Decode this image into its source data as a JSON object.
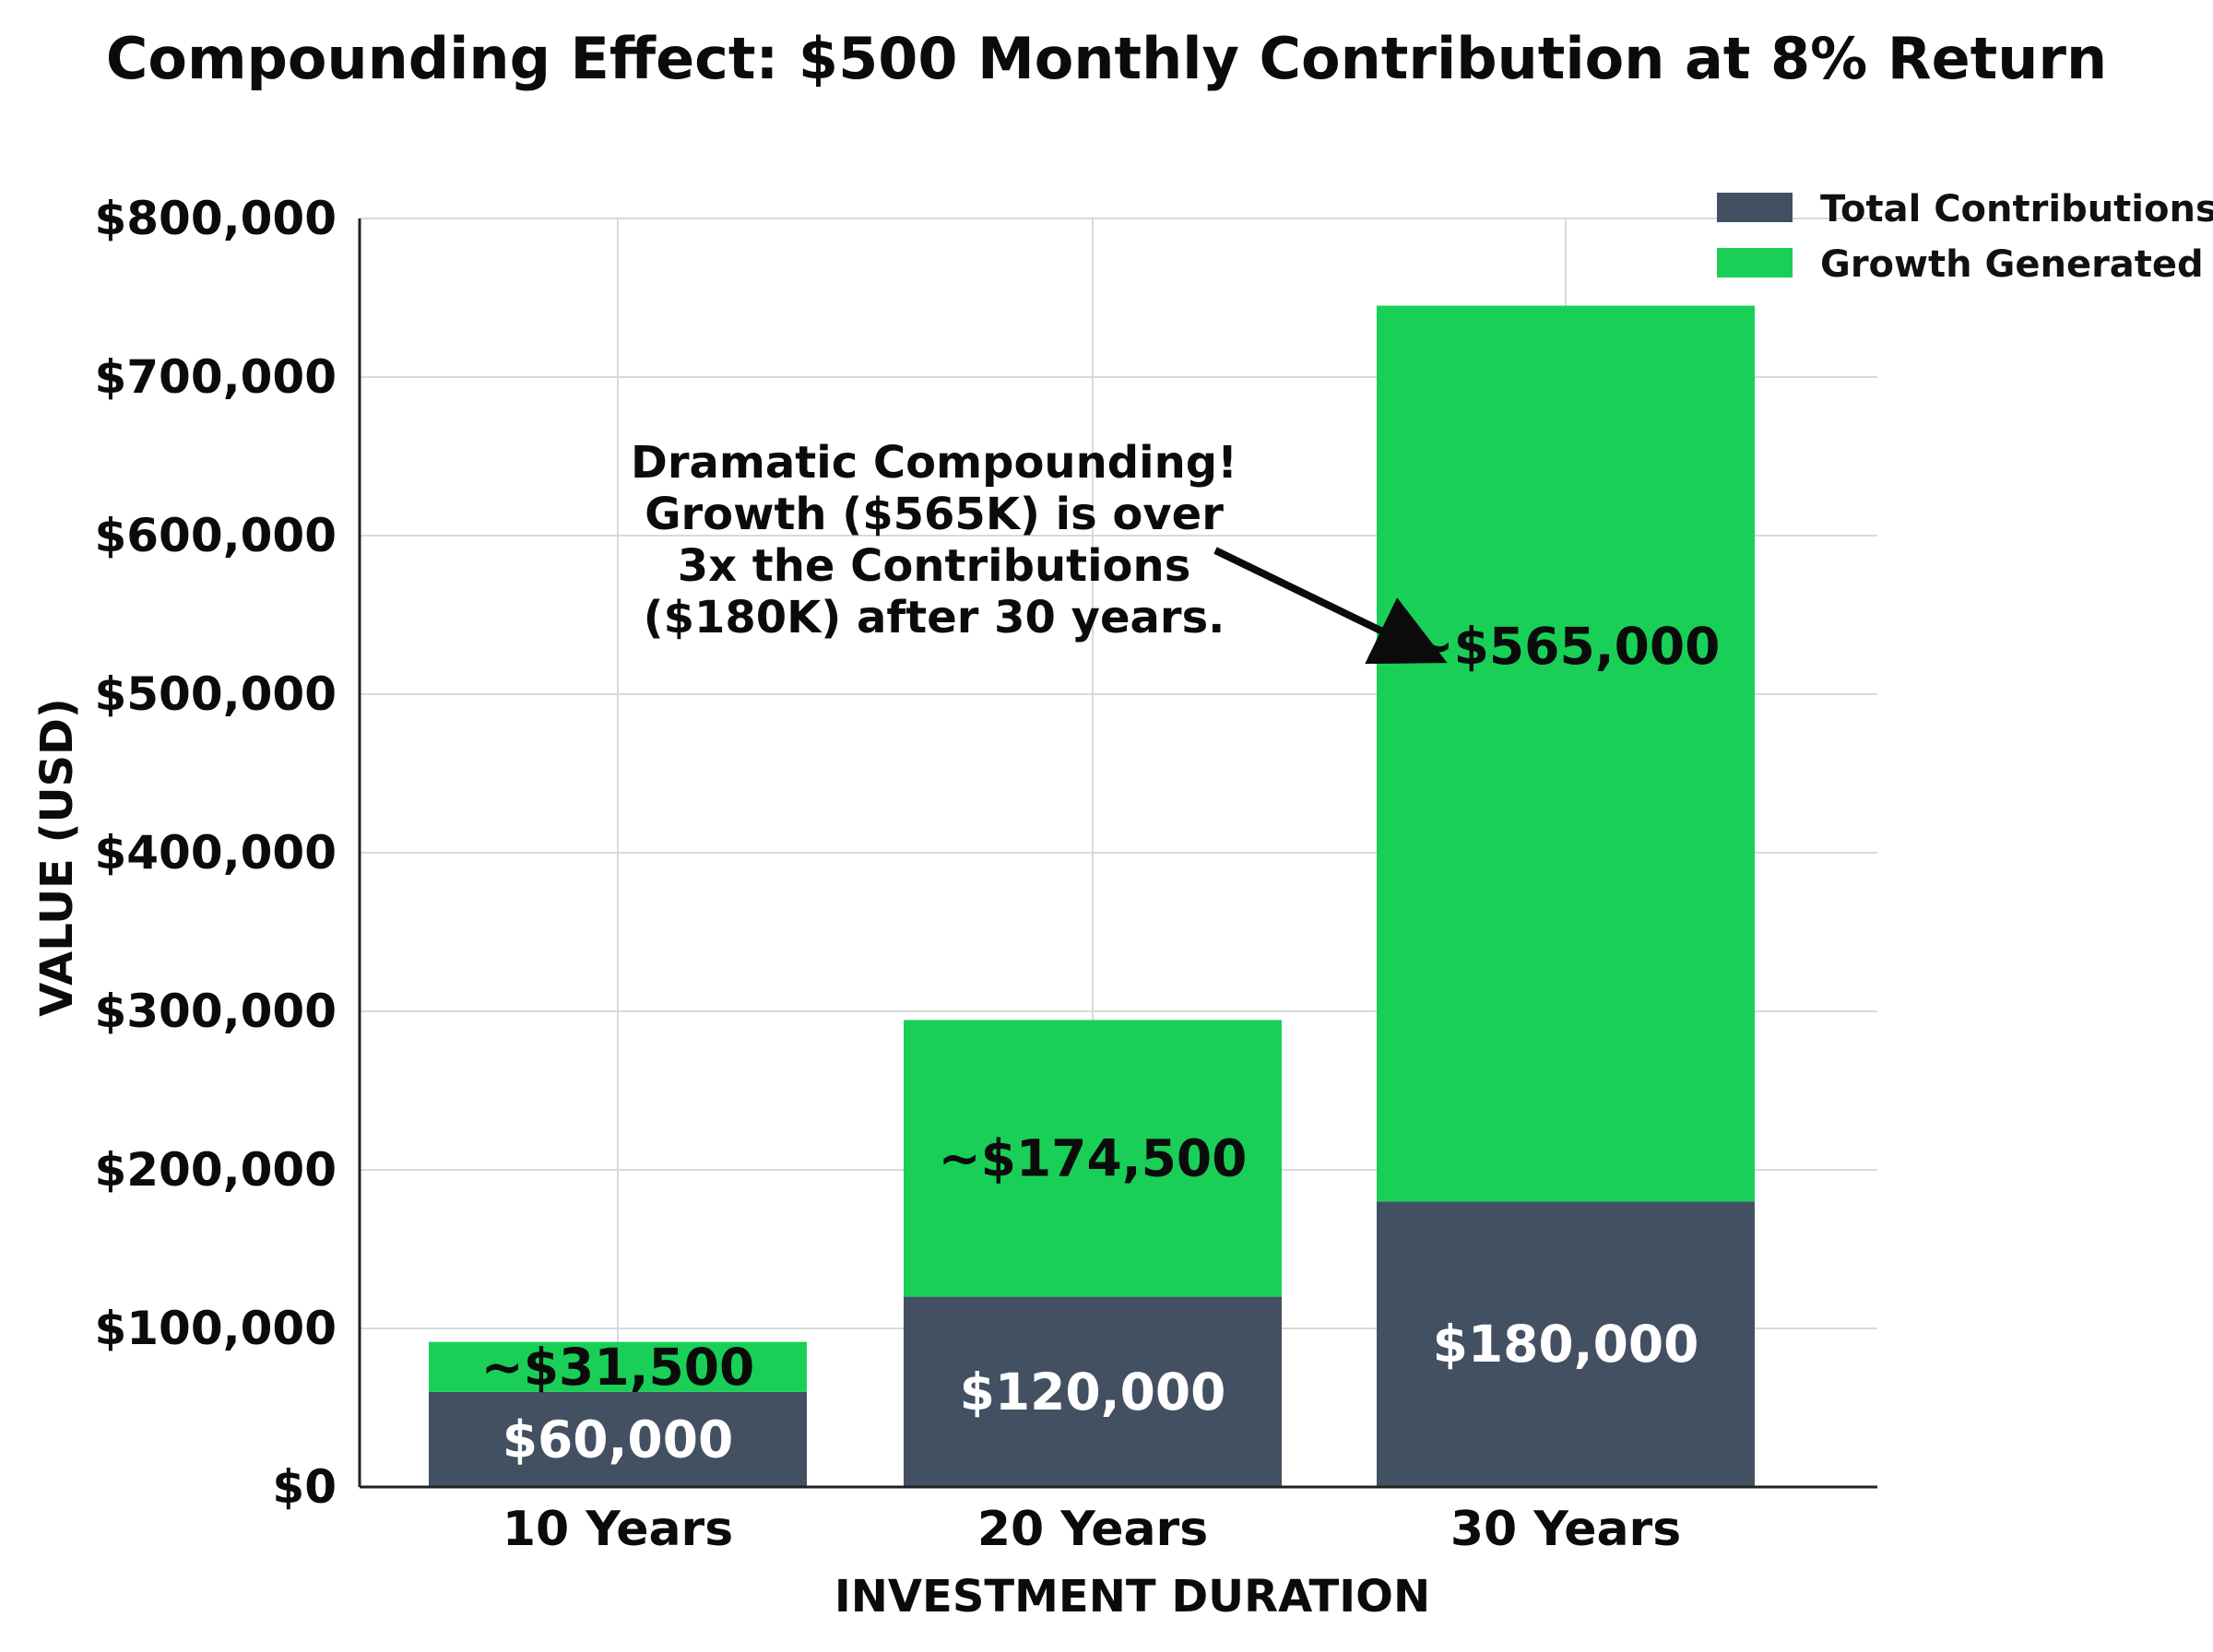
{
  "chart_data": {
    "type": "bar",
    "stacked": true,
    "title": "Compounding Effect: $500 Monthly Contribution at 8% Return",
    "xlabel": "INVESTMENT DURATION",
    "ylabel": "VALUE (USD)",
    "categories": [
      "10 Years",
      "20 Years",
      "30 Years"
    ],
    "ylim": [
      0,
      800000
    ],
    "yticks": [
      0,
      100000,
      200000,
      300000,
      400000,
      500000,
      600000,
      700000,
      800000
    ],
    "ytick_labels": [
      "$0",
      "$100,000",
      "$200,000",
      "$300,000",
      "$400,000",
      "$500,000",
      "$600,000",
      "$700,000",
      "$800,000"
    ],
    "grid": true,
    "legend_position": "top-right",
    "series": [
      {
        "name": "Total Contributions",
        "color": "#435062",
        "values": [
          60000,
          120000,
          180000
        ],
        "labels": [
          "$60,000",
          "$120,000",
          "$180,000"
        ]
      },
      {
        "name": "Growth Generated",
        "color": "#19cf57",
        "values": [
          31500,
          174500,
          565000
        ],
        "labels": [
          "~$31,500",
          "~$174,500",
          "~$565,000"
        ]
      }
    ],
    "annotation": {
      "lines": [
        "Dramatic Compounding!",
        "Growth ($565K) is over",
        "3x the Contributions",
        "($180K) after 30 years."
      ],
      "target_category": "30 Years",
      "target_value": 520000
    }
  }
}
